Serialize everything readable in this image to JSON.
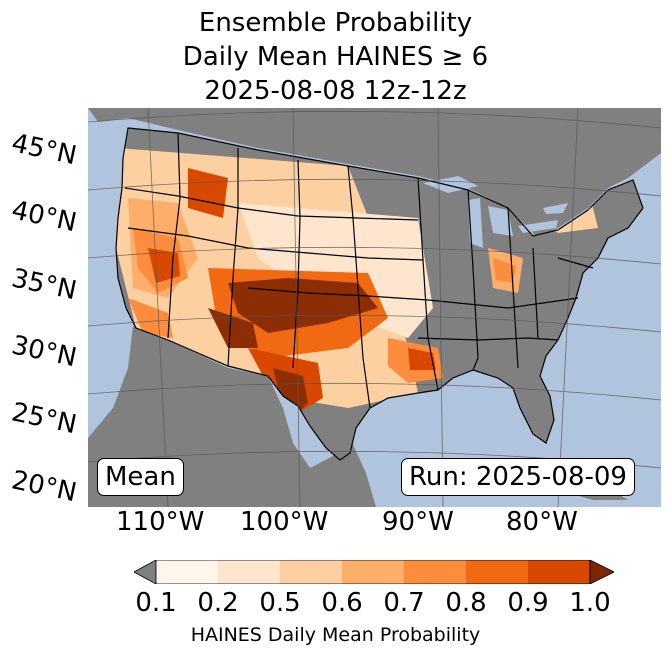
{
  "title": {
    "line1": "Ensemble Probability",
    "line2": "Daily Mean HAINES ≥ 6",
    "line3": "2025-08-08 12z-12z"
  },
  "map": {
    "latitude_labels": [
      "45°N",
      "40°N",
      "35°N",
      "30°N",
      "25°N",
      "20°N"
    ],
    "longitude_labels": [
      "110°W",
      "100°W",
      "90°W",
      "80°W"
    ],
    "mean_label": "Mean",
    "run_label": "Run: 2025-08-09",
    "colors": {
      "ocean": "#b0c4de",
      "land_no_data": "#808080",
      "state_border": "#000000",
      "gridline": "#555555"
    }
  },
  "colorbar": {
    "ticks": [
      "0.1",
      "0.2",
      "0.5",
      "0.6",
      "0.7",
      "0.8",
      "0.9",
      "1.0"
    ],
    "colors": [
      "#fff5eb",
      "#fee6ce",
      "#fdd0a2",
      "#fdae6b",
      "#fd8d3c",
      "#f16913",
      "#d94801",
      "#8c2d04"
    ],
    "under_color": "#808080",
    "over_color": "#7f2704",
    "label": "HAINES Daily Mean Probability"
  }
}
